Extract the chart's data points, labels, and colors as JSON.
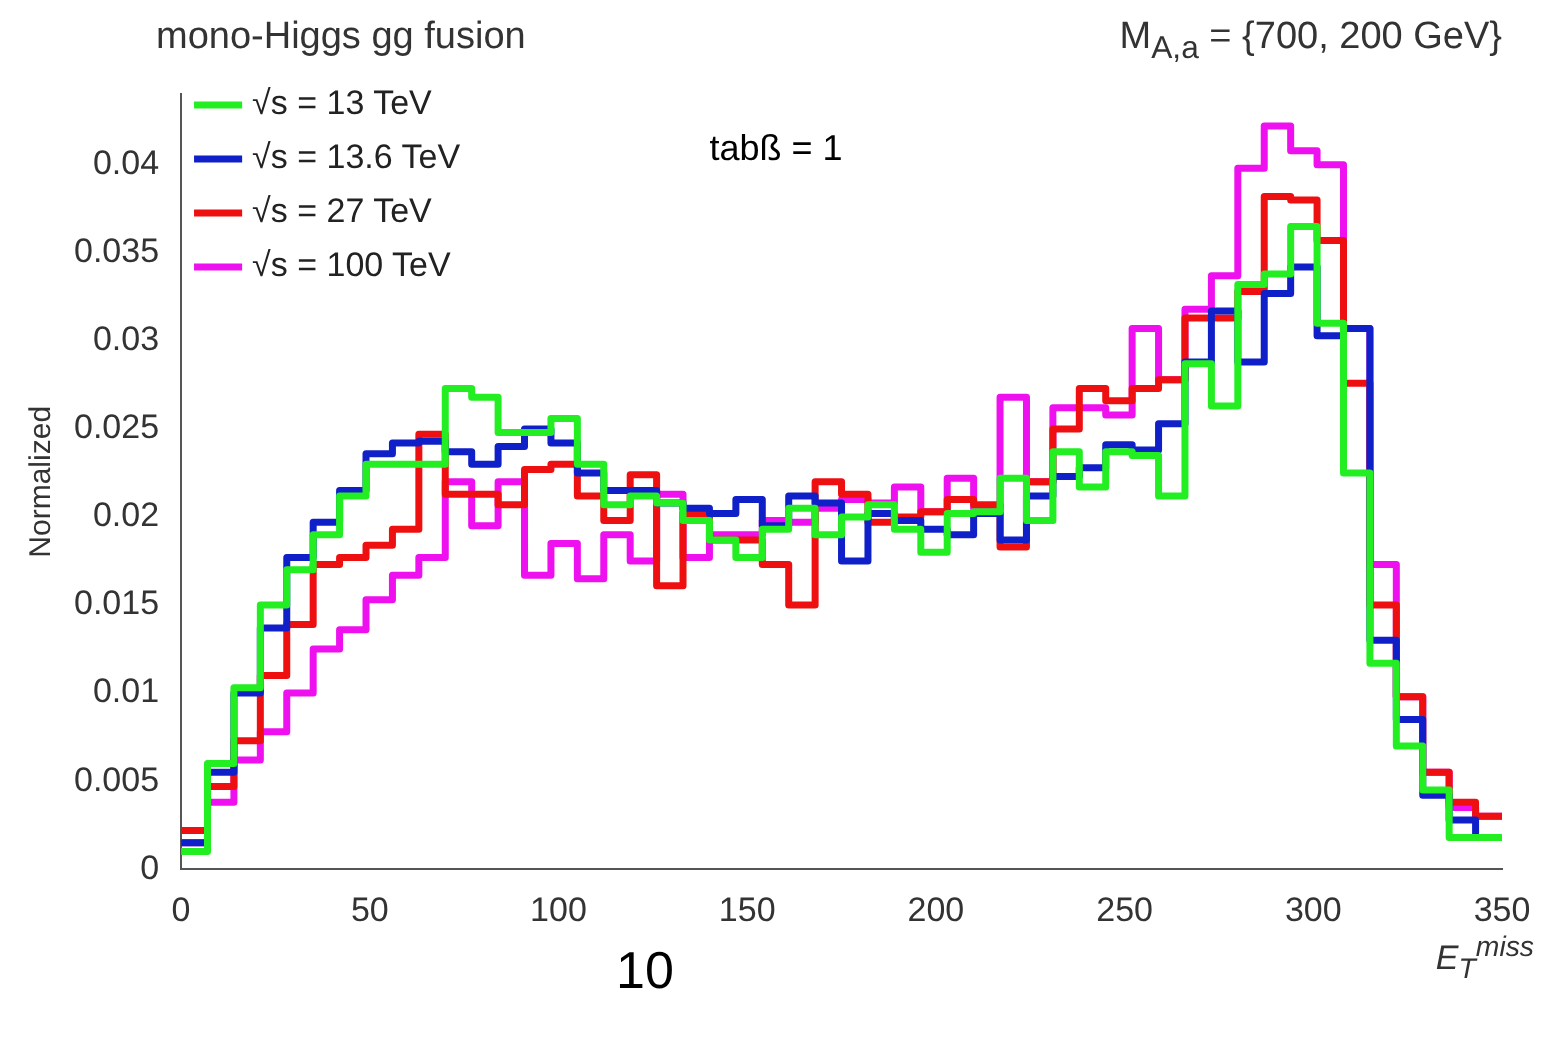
{
  "chart_data": {
    "type": "histogram",
    "title": "mono-Higgs  gg fusion",
    "subtitle": "M$_{A,a}$ = {700, 200 GeV}",
    "xlabel": "E$_{T}$$^{miss}$",
    "ylabel": "Normalized",
    "annotations": [
      "tabß = 1",
      "10"
    ],
    "bins": [
      0,
      7,
      14,
      21,
      28,
      35,
      42,
      49,
      56,
      63,
      70,
      77,
      84,
      91,
      98,
      105,
      112,
      119,
      126,
      133,
      140,
      147,
      154,
      161,
      168,
      175,
      182,
      189,
      196,
      203,
      210,
      217,
      224,
      231,
      238,
      245,
      252,
      259,
      266,
      273,
      280,
      287,
      294,
      301,
      308,
      315,
      322,
      329,
      336,
      343,
      350
    ],
    "series": [
      {
        "name": "√s = 13 TeV",
        "color": "#22ee22",
        "values": [
          0.001,
          0.006,
          0.0103,
          0.015,
          0.017,
          0.019,
          0.0212,
          0.023,
          0.023,
          0.023,
          0.0273,
          0.0268,
          0.0248,
          0.0248,
          0.0256,
          0.023,
          0.0207,
          0.0212,
          0.0208,
          0.0198,
          0.0187,
          0.0177,
          0.0193,
          0.0205,
          0.019,
          0.02,
          0.0207,
          0.0193,
          0.018,
          0.0202,
          0.0203,
          0.0222,
          0.0198,
          0.0237,
          0.0217,
          0.0237,
          0.0235,
          0.0212,
          0.0287,
          0.0263,
          0.0332,
          0.0338,
          0.0365,
          0.031,
          0.0225,
          0.0117,
          0.007,
          0.0045,
          0.0018,
          0.0018
        ]
      },
      {
        "name": "√s = 13.6 TeV",
        "color": "#1020c8",
        "values": [
          0.0015,
          0.0055,
          0.01,
          0.0137,
          0.0177,
          0.0197,
          0.0215,
          0.0236,
          0.0242,
          0.0243,
          0.0237,
          0.023,
          0.024,
          0.025,
          0.0242,
          0.0225,
          0.0215,
          0.0215,
          0.0208,
          0.0205,
          0.0202,
          0.021,
          0.0195,
          0.0212,
          0.0208,
          0.0175,
          0.0202,
          0.0198,
          0.0193,
          0.019,
          0.0202,
          0.0187,
          0.0212,
          0.0223,
          0.0228,
          0.0241,
          0.0238,
          0.0253,
          0.0288,
          0.0317,
          0.0288,
          0.0327,
          0.0342,
          0.0303,
          0.0307,
          0.013,
          0.0085,
          0.0042,
          0.0028,
          0.0018
        ]
      },
      {
        "name": "√s = 27 TeV",
        "color": "#ee1010",
        "values": [
          0.0022,
          0.0047,
          0.0073,
          0.011,
          0.0139,
          0.0173,
          0.0177,
          0.0184,
          0.0193,
          0.0247,
          0.0213,
          0.0213,
          0.0207,
          0.0227,
          0.023,
          0.0212,
          0.0198,
          0.0224,
          0.0161,
          0.0202,
          0.0187,
          0.0187,
          0.0173,
          0.015,
          0.022,
          0.0213,
          0.0197,
          0.02,
          0.0203,
          0.021,
          0.0207,
          0.0183,
          0.022,
          0.025,
          0.0273,
          0.0266,
          0.0273,
          0.0278,
          0.0313,
          0.0313,
          0.0328,
          0.0382,
          0.038,
          0.0357,
          0.0276,
          0.015,
          0.0098,
          0.0055,
          0.0038,
          0.003
        ]
      },
      {
        "name": "√s = 100 TeV",
        "color": "#ee10ee",
        "values": [
          0.0015,
          0.0038,
          0.0062,
          0.0078,
          0.01,
          0.0125,
          0.0136,
          0.0153,
          0.0167,
          0.0177,
          0.022,
          0.0195,
          0.022,
          0.0167,
          0.0185,
          0.0165,
          0.019,
          0.0175,
          0.0213,
          0.0177,
          0.019,
          0.019,
          0.0198,
          0.0197,
          0.0205,
          0.021,
          0.0208,
          0.0217,
          0.0203,
          0.0222,
          0.0205,
          0.0268,
          0.022,
          0.0262,
          0.0262,
          0.0258,
          0.0307,
          0.0278,
          0.0318,
          0.0337,
          0.0398,
          0.0422,
          0.0408,
          0.04,
          0.0307,
          0.0173,
          0.0098,
          0.0055,
          0.0035,
          0.003
        ]
      }
    ],
    "xlim": [
      0,
      350
    ],
    "xticks": [
      0,
      50,
      100,
      150,
      200,
      250,
      300,
      350
    ],
    "ylim": [
      0,
      0.044
    ],
    "yticks": [
      0,
      0.005,
      0.01,
      0.015,
      0.02,
      0.025,
      0.03,
      0.035,
      0.04
    ],
    "legend": "top left",
    "line_style": "solid"
  }
}
